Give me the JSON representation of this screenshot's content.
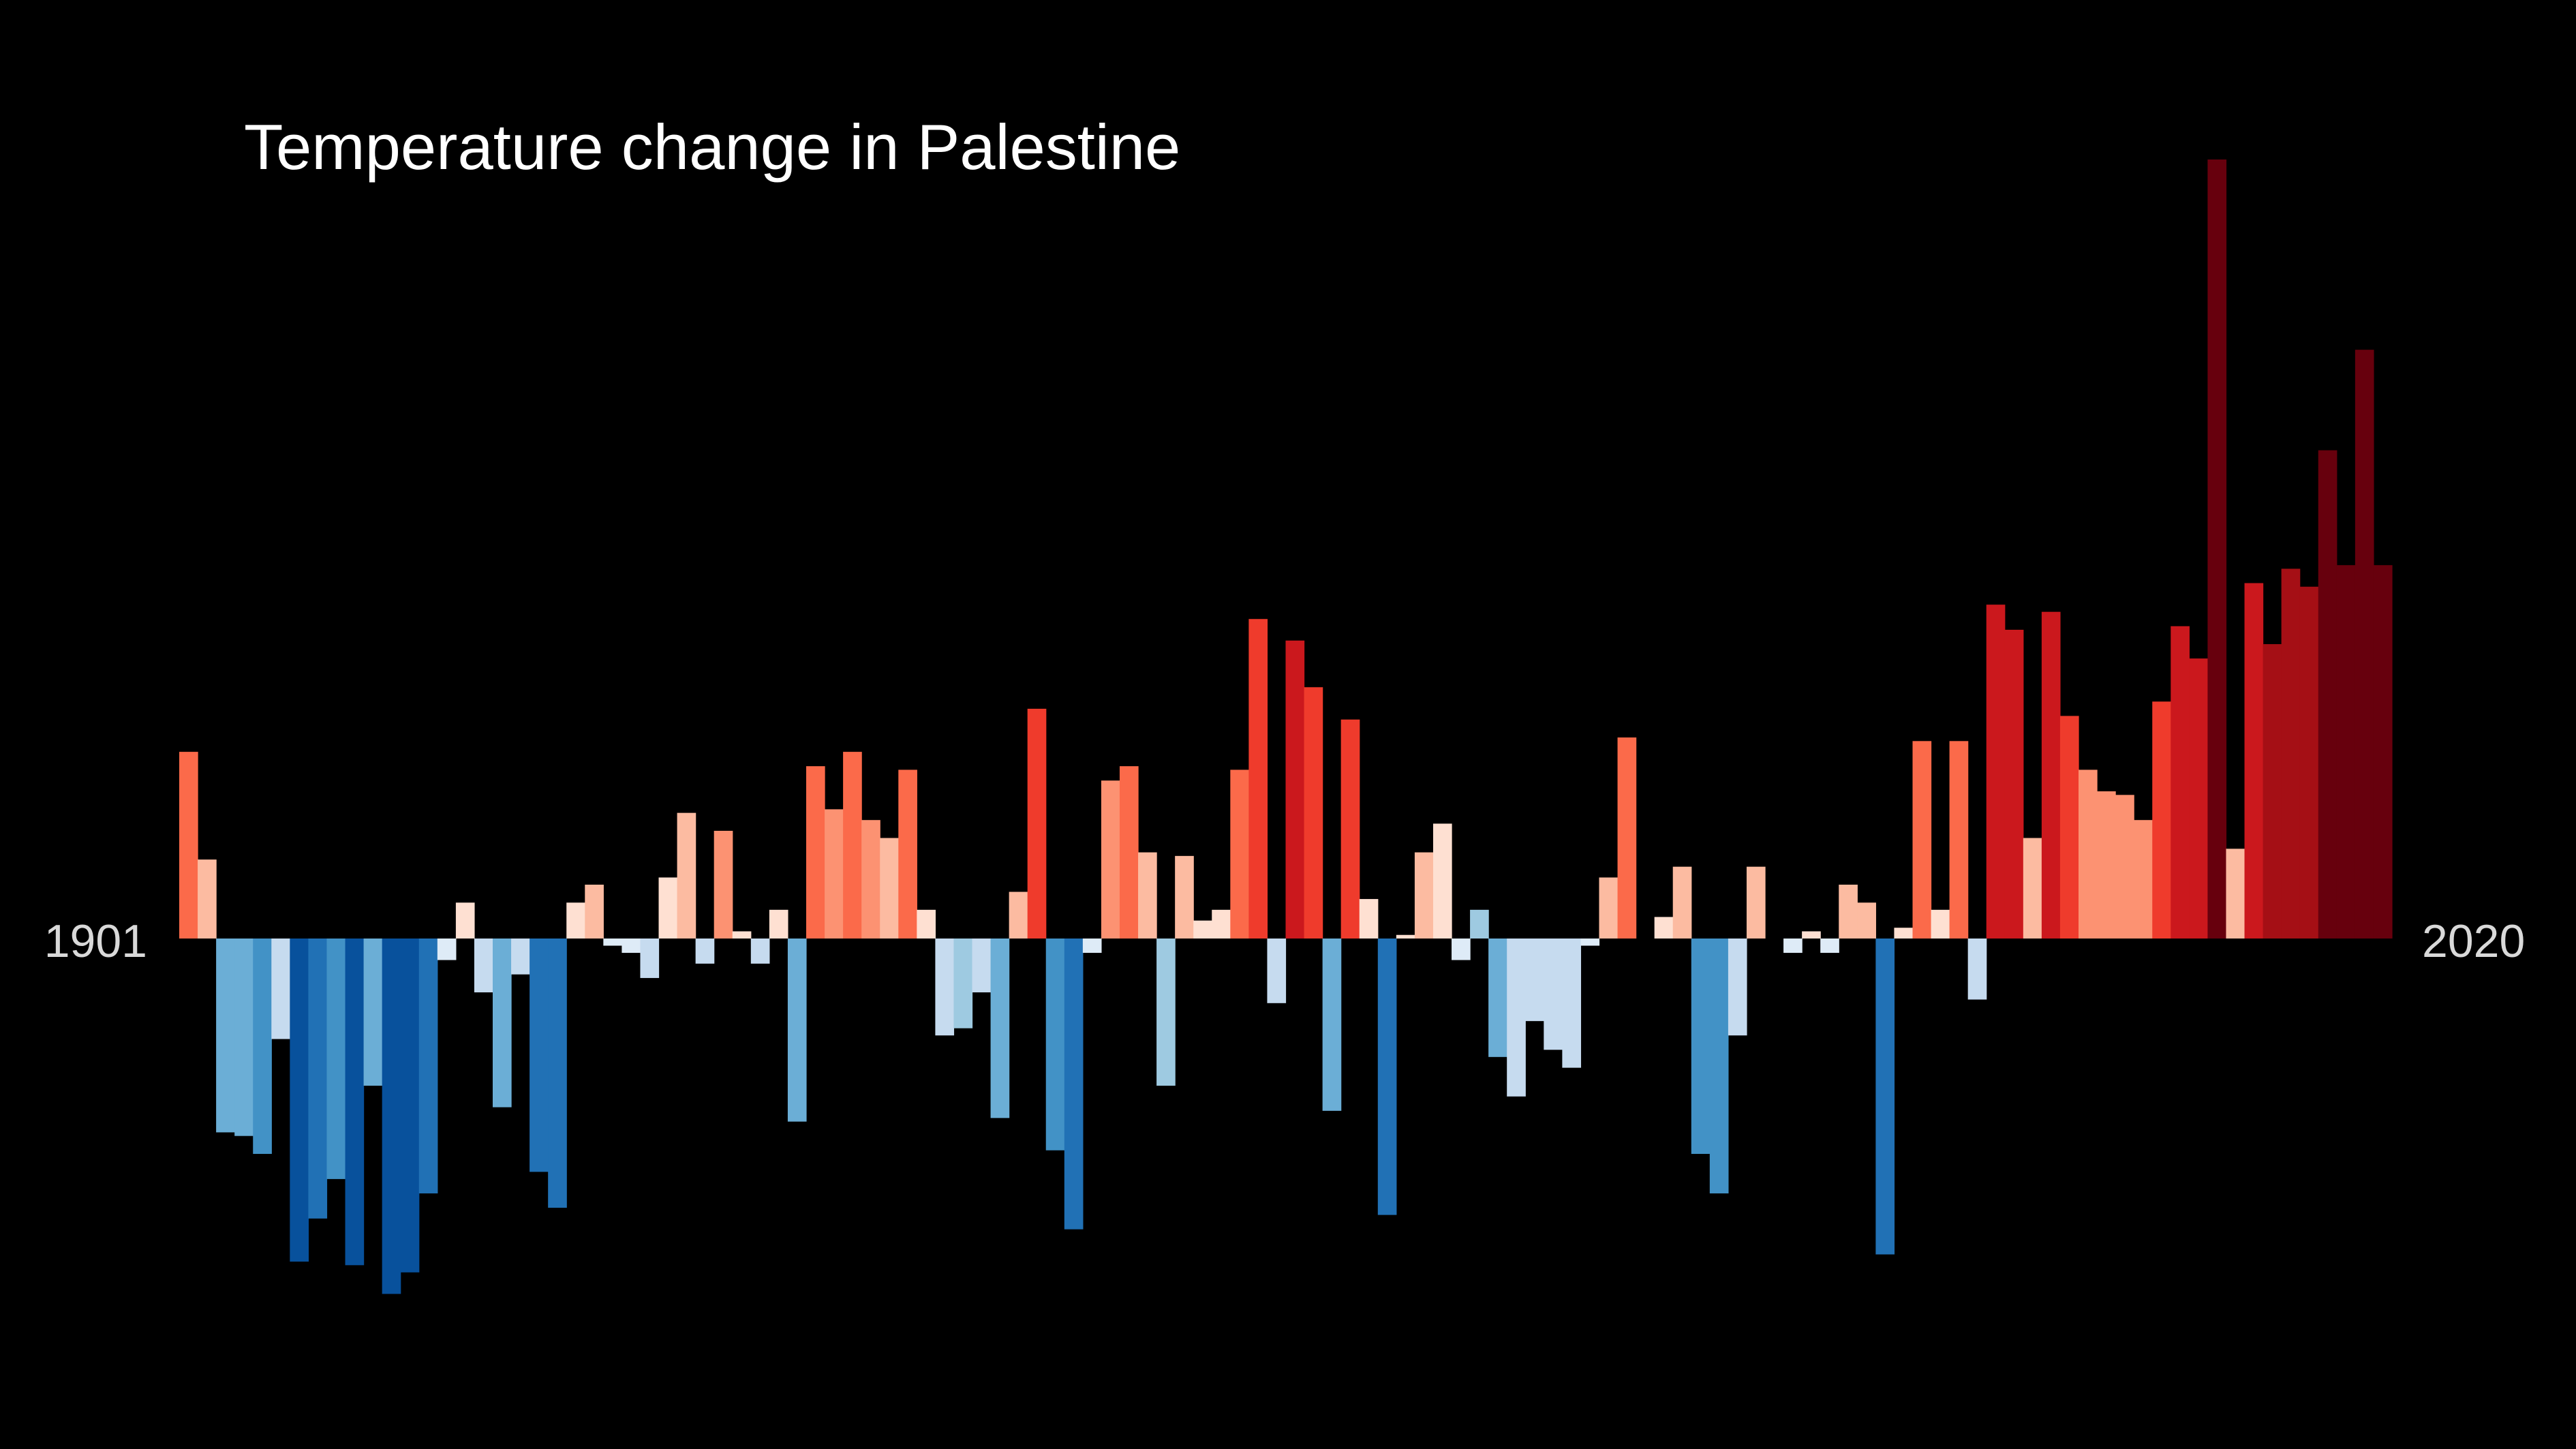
{
  "chart_data": {
    "type": "bar",
    "title": "Temperature change in Palestine",
    "start_label": "1901",
    "end_label": "2020",
    "background": "#000000",
    "ylim": [
      -1.0,
      2.17
    ],
    "categories": [
      "1901",
      "1902",
      "1903",
      "1904",
      "1905",
      "1906",
      "1907",
      "1908",
      "1909",
      "1910",
      "1911",
      "1912",
      "1913",
      "1914",
      "1915",
      "1916",
      "1917",
      "1918",
      "1919",
      "1920",
      "1921",
      "1922",
      "1923",
      "1924",
      "1925",
      "1926",
      "1927",
      "1928",
      "1929",
      "1930",
      "1931",
      "1932",
      "1933",
      "1934",
      "1935",
      "1936",
      "1937",
      "1938",
      "1939",
      "1940",
      "1941",
      "1942",
      "1943",
      "1944",
      "1945",
      "1946",
      "1947",
      "1948",
      "1949",
      "1950",
      "1951",
      "1952",
      "1953",
      "1954",
      "1955",
      "1956",
      "1957",
      "1958",
      "1959",
      "1960",
      "1961",
      "1962",
      "1963",
      "1964",
      "1965",
      "1966",
      "1967",
      "1968",
      "1969",
      "1970",
      "1971",
      "1972",
      "1973",
      "1974",
      "1975",
      "1976",
      "1977",
      "1978",
      "1979",
      "1980",
      "1981",
      "1982",
      "1983",
      "1984",
      "1985",
      "1986",
      "1987",
      "1988",
      "1989",
      "1990",
      "1991",
      "1992",
      "1993",
      "1994",
      "1995",
      "1996",
      "1997",
      "1998",
      "1999",
      "2000",
      "2001",
      "2002",
      "2003",
      "2004",
      "2005",
      "2006",
      "2007",
      "2008",
      "2009",
      "2010",
      "2011",
      "2012",
      "2013",
      "2014",
      "2015",
      "2016",
      "2017",
      "2018",
      "2019",
      "2020"
    ],
    "values": [
      0.52,
      0.22,
      -0.54,
      -0.55,
      -0.6,
      -0.28,
      -0.9,
      -0.78,
      -0.67,
      -0.91,
      -0.41,
      -0.99,
      -0.93,
      -0.71,
      -0.06,
      0.1,
      -0.15,
      -0.47,
      -0.1,
      -0.65,
      -0.75,
      0.1,
      0.15,
      -0.02,
      -0.04,
      -0.11,
      0.17,
      0.35,
      -0.07,
      0.3,
      0.02,
      -0.07,
      0.08,
      -0.51,
      0.48,
      0.36,
      0.52,
      0.33,
      0.28,
      0.47,
      0.08,
      -0.27,
      -0.25,
      -0.15,
      -0.5,
      0.13,
      0.64,
      -0.59,
      -0.81,
      -0.04,
      0.44,
      0.48,
      0.24,
      -0.41,
      0.23,
      0.05,
      0.08,
      0.47,
      0.89,
      -0.18,
      0.83,
      0.7,
      -0.48,
      0.61,
      0.11,
      -0.77,
      0.01,
      0.24,
      0.32,
      -0.06,
      0.08,
      -0.33,
      -0.44,
      -0.23,
      -0.31,
      -0.36,
      -0.02,
      0.17,
      0.56,
      0.0,
      0.06,
      0.2,
      -0.6,
      -0.71,
      -0.27,
      0.2,
      0.0,
      -0.04,
      0.02,
      -0.04,
      0.15,
      0.1,
      -0.88,
      0.03,
      0.55,
      0.08,
      0.55,
      -0.17,
      0.93,
      0.86,
      0.28,
      0.91,
      0.62,
      0.47,
      0.41,
      0.4,
      0.33,
      0.66,
      0.87,
      0.78,
      2.17,
      0.25,
      0.99,
      0.82,
      1.03,
      0.98,
      1.36,
      1.04,
      1.64,
      1.04
    ],
    "colors": [
      "#fb6a4a",
      "#fcbba1",
      "#6baed6",
      "#6baed6",
      "#4292c6",
      "#c6dbef",
      "#08519c",
      "#2171b5",
      "#4292c6",
      "#08519c",
      "#6baed6",
      "#08519c",
      "#08519c",
      "#2171b5",
      "#deebf7",
      "#fee0d2",
      "#c6dbef",
      "#6baed6",
      "#c6dbef",
      "#2171b5",
      "#2171b5",
      "#fee0d2",
      "#fcbba1",
      "#deebf7",
      "#deebf7",
      "#c6dbef",
      "#fee0d2",
      "#fcbba1",
      "#c6dbef",
      "#fc9272",
      "#fee0d2",
      "#c6dbef",
      "#fee0d2",
      "#6baed6",
      "#fb6a4a",
      "#fc9272",
      "#fb6a4a",
      "#fc9272",
      "#fcbba1",
      "#fb6a4a",
      "#fee0d2",
      "#c6dbef",
      "#9ecae1",
      "#c6dbef",
      "#6baed6",
      "#fcbba1",
      "#ef3b2c",
      "#4292c6",
      "#2171b5",
      "#deebf7",
      "#fc9272",
      "#fb6a4a",
      "#fcbba1",
      "#9ecae1",
      "#fcbba1",
      "#fee0d2",
      "#fee0d2",
      "#fb6a4a",
      "#ef3b2c",
      "#c6dbef",
      "#cb181d",
      "#ef3b2c",
      "#6baed6",
      "#ef3b2c",
      "#fee0d2",
      "#2171b5",
      "#fee0d2",
      "#fcbba1",
      "#fee0d2",
      "#deebf7",
      "#9ecae1",
      "#6baed6",
      "#c6dbef",
      "#c6dbef",
      "#c6dbef",
      "#c6dbef",
      "#deebf7",
      "#fcbba1",
      "#fb6a4a",
      "#fee0d2",
      "#fee0d2",
      "#fcbba1",
      "#4292c6",
      "#4292c6",
      "#c6dbef",
      "#fcbba1",
      "#fee0d2",
      "#deebf7",
      "#fee0d2",
      "#deebf7",
      "#fcbba1",
      "#fcbba1",
      "#2171b5",
      "#fee0d2",
      "#fb6a4a",
      "#fee0d2",
      "#fb6a4a",
      "#c6dbef",
      "#cb181d",
      "#cb181d",
      "#fcbba1",
      "#cb181d",
      "#ef3b2c",
      "#fc9272",
      "#fc9272",
      "#fc9272",
      "#fc9272",
      "#ef3b2c",
      "#cb181d",
      "#cb181d",
      "#67000d",
      "#fcbba1",
      "#cb181d",
      "#a50f15",
      "#a50f15",
      "#a50f15",
      "#67000d",
      "#67000d",
      "#67000d",
      "#67000d"
    ]
  }
}
